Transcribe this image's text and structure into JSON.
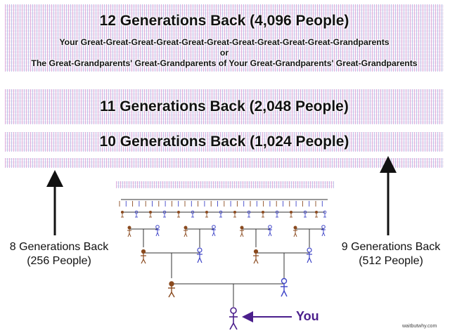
{
  "gen12": {
    "title": "12 Generations Back (4,096 People)",
    "line1": "Your Great-Great-Great-Great-Great-Great-Great-Great-Great-Great-Grandparents",
    "or": "or",
    "line2": "The Great-Grandparents' Great-Grandparents of Your Great-Grandparents' Great-Grandparents"
  },
  "gen11": {
    "title": "11 Generations Back (2,048 People)"
  },
  "gen10": {
    "title": "10 Generations Back (1,024 People)"
  },
  "gen8": {
    "line1": "8 Generations Back",
    "line2": "(256 People)"
  },
  "gen9": {
    "line1": "9 Generations Back",
    "line2": "(512 People)"
  },
  "you": {
    "label": "You"
  },
  "credit": "waitbutwhy.com",
  "colors": {
    "male": "#8a4a1f",
    "female": "#3f45c8",
    "you": "#4b1f8c",
    "pattern_pink": "#c878c8",
    "pattern_blue": "#7890dc"
  }
}
